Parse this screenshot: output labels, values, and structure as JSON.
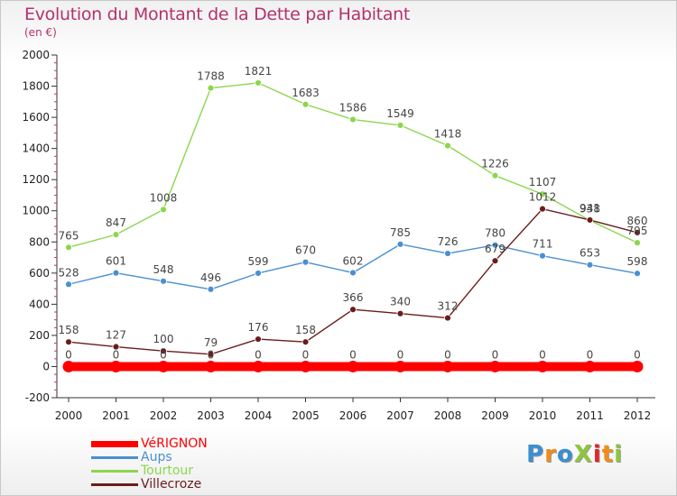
{
  "title": "Evolution du Montant de la Dette par Habitant",
  "subtitle": "(en €)",
  "logo": {
    "text": "ProXiti",
    "colors": [
      "#3a8fd0",
      "#f08c1c",
      "#3a8fd0",
      "#8cc63f",
      "#e0262a",
      "#f08c1c",
      "#8cc63f"
    ]
  },
  "chart_data": {
    "type": "line",
    "title": "Evolution du Montant de la Dette par Habitant",
    "subtitle": "(en €)",
    "xlabel": "",
    "ylabel": "",
    "x": [
      "2000",
      "2001",
      "2002",
      "2003",
      "2004",
      "2005",
      "2006",
      "2007",
      "2008",
      "2009",
      "2010",
      "2011",
      "2012"
    ],
    "ylim": [
      -200,
      2000
    ],
    "yticks": [
      -200,
      0,
      200,
      400,
      600,
      800,
      1000,
      1200,
      1400,
      1600,
      1800,
      2000
    ],
    "grid": false,
    "legend_position": "bottom-left",
    "series": [
      {
        "name": "VéRIGNON",
        "color": "#ff0000",
        "values": [
          0,
          0,
          0,
          0,
          0,
          0,
          0,
          0,
          0,
          0,
          0,
          0,
          0
        ]
      },
      {
        "name": "Aups",
        "color": "#4a90d0",
        "values": [
          528,
          601,
          548,
          496,
          599,
          670,
          602,
          785,
          726,
          780,
          711,
          653,
          598
        ]
      },
      {
        "name": "Tourtour",
        "color": "#8cd64e",
        "values": [
          765,
          847,
          1008,
          1788,
          1821,
          1683,
          1586,
          1549,
          1418,
          1226,
          1107,
          938,
          795
        ]
      },
      {
        "name": "Villecroze",
        "color": "#6a1c1c",
        "values": [
          158,
          127,
          100,
          79,
          176,
          158,
          366,
          340,
          312,
          679,
          1012,
          941,
          860
        ]
      }
    ]
  }
}
